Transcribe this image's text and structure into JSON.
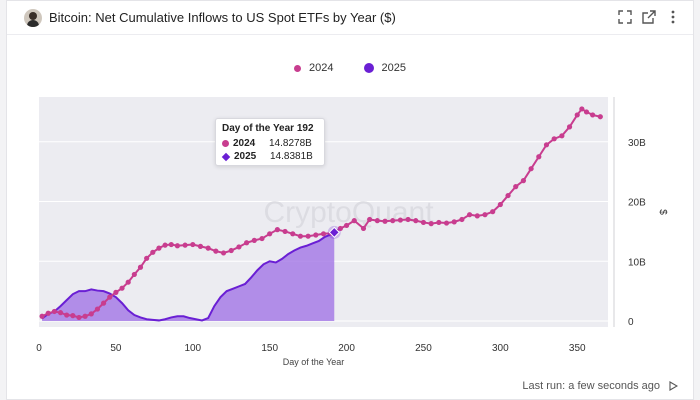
{
  "header": {
    "title": "Bitcoin: Net Cumulative Inflows to US Spot ETFs by Year ($)",
    "icons": [
      "avatar",
      "expand-icon",
      "open-external-icon",
      "more-options-icon"
    ]
  },
  "footer": {
    "last_run": "Last run: a few seconds ago",
    "run_icon": "play-icon"
  },
  "tooltip": {
    "title": "Day of the Year 192",
    "rows": [
      {
        "name": "2024",
        "value": "14.8278B"
      },
      {
        "name": "2025",
        "value": "14.8381B"
      }
    ]
  },
  "watermark": "CryptoQuant",
  "colors": {
    "series_2024": "#c83d8f",
    "series_2025": "#6a1fd4",
    "area_2025": "#a77de6",
    "plot_bg": "#ececf1"
  },
  "chart_data": {
    "type": "line",
    "title": "Bitcoin: Net Cumulative Inflows to US Spot ETFs by Year ($)",
    "xlabel": "Day of the Year",
    "ylabel": "$",
    "xlim": [
      0,
      370
    ],
    "ylim": [
      -1,
      37.5
    ],
    "x_ticks": [
      0,
      50,
      100,
      150,
      200,
      250,
      300,
      350
    ],
    "y_ticks": [
      0,
      10,
      20,
      30
    ],
    "y_tick_labels": [
      "0",
      "10B",
      "20B",
      "30B"
    ],
    "legend_position": "top-center",
    "grid": "horizontal",
    "series": [
      {
        "name": "2024",
        "style": "dots",
        "x": [
          2,
          6,
          10,
          14,
          18,
          22,
          26,
          30,
          34,
          38,
          42,
          46,
          50,
          54,
          58,
          62,
          66,
          70,
          74,
          78,
          82,
          86,
          90,
          95,
          100,
          105,
          110,
          115,
          120,
          125,
          130,
          135,
          140,
          145,
          150,
          155,
          160,
          165,
          170,
          175,
          180,
          185,
          190,
          192,
          196,
          200,
          205,
          211,
          215,
          220,
          225,
          230,
          235,
          240,
          245,
          250,
          255,
          260,
          265,
          270,
          275,
          280,
          285,
          290,
          295,
          300,
          305,
          310,
          315,
          320,
          325,
          330,
          335,
          340,
          345,
          350,
          353,
          356,
          360,
          365
        ],
        "y": [
          0.8,
          1.3,
          1.6,
          1.4,
          1.0,
          0.9,
          0.6,
          0.8,
          1.2,
          2.0,
          3.0,
          4.0,
          4.8,
          5.5,
          6.5,
          7.8,
          9.0,
          10.5,
          11.5,
          12.2,
          12.7,
          12.8,
          12.6,
          12.7,
          12.8,
          12.5,
          12.2,
          11.7,
          11.4,
          11.8,
          12.4,
          13.1,
          13.5,
          13.8,
          14.6,
          15.3,
          15.0,
          14.6,
          14.2,
          14.2,
          14.4,
          14.6,
          14.7,
          14.8278,
          15.5,
          16.0,
          16.8,
          15.5,
          17.0,
          16.8,
          16.7,
          16.8,
          16.9,
          17.0,
          16.8,
          16.5,
          16.3,
          16.5,
          16.4,
          16.6,
          17.0,
          17.8,
          17.6,
          17.8,
          18.3,
          19.5,
          21.0,
          22.5,
          23.5,
          25.5,
          27.5,
          29.5,
          30.5,
          31.0,
          32.5,
          34.5,
          35.5,
          35.0,
          34.5,
          34.2
        ]
      },
      {
        "name": "2025",
        "style": "line-area",
        "x": [
          2,
          6,
          10,
          14,
          18,
          22,
          26,
          30,
          34,
          38,
          42,
          46,
          50,
          54,
          58,
          62,
          66,
          70,
          74,
          78,
          82,
          86,
          90,
          94,
          98,
          102,
          106,
          110,
          114,
          118,
          122,
          126,
          130,
          134,
          138,
          142,
          146,
          150,
          154,
          158,
          162,
          166,
          170,
          174,
          178,
          182,
          186,
          190,
          192
        ],
        "y": [
          0.4,
          1.2,
          1.6,
          2.5,
          3.5,
          4.5,
          5.0,
          5.0,
          5.3,
          5.1,
          5.0,
          4.6,
          4.0,
          3.0,
          1.8,
          1.0,
          0.6,
          0.3,
          0.2,
          0.1,
          0.3,
          0.6,
          0.8,
          0.8,
          0.5,
          0.3,
          0.1,
          0.5,
          2.5,
          4.0,
          5.0,
          5.4,
          5.8,
          6.2,
          7.3,
          8.5,
          9.5,
          10.0,
          9.8,
          10.4,
          11.2,
          11.8,
          12.3,
          12.6,
          13.0,
          13.4,
          14.1,
          14.5,
          14.8381
        ]
      }
    ]
  }
}
